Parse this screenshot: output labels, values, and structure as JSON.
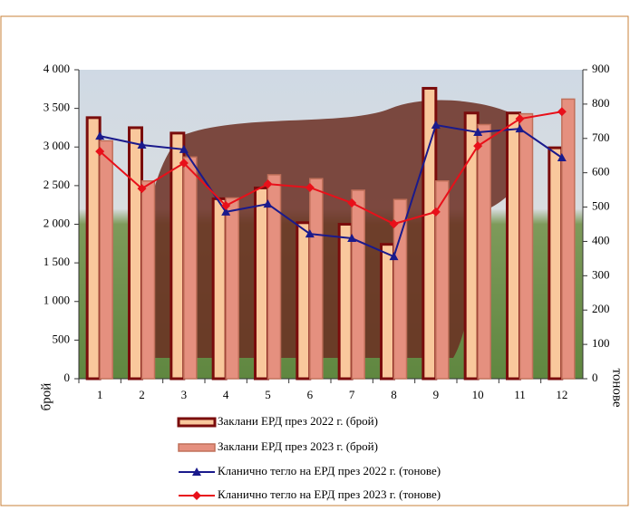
{
  "chart_data": {
    "type": "bar",
    "categories": [
      "1",
      "2",
      "3",
      "4",
      "5",
      "6",
      "7",
      "8",
      "9",
      "10",
      "11",
      "12"
    ],
    "ylim": [
      0,
      4000
    ],
    "yticks": [
      0,
      500,
      {
        "value": 1000,
        "label": "1 000"
      },
      {
        "value": 1500,
        "label": "1 500"
      },
      {
        "value": 2000,
        "label": "2 000"
      },
      {
        "value": 2500,
        "label": "2 500"
      },
      {
        "value": 3000,
        "label": "3 000"
      },
      {
        "value": 3500,
        "label": "3 500"
      },
      {
        "value": 4000,
        "label": "4 000"
      }
    ],
    "y2lim": [
      0,
      900
    ],
    "y2ticks": [
      0,
      100,
      200,
      300,
      400,
      500,
      600,
      700,
      800,
      900
    ],
    "ylabel": "брой",
    "y2label": "тонове",
    "series": [
      {
        "name": "Заклани ЕРД през 2022 г. (брой)",
        "type": "bar",
        "color": "#f9c89c",
        "edge": "#7a0c0c",
        "values": [
          3380,
          3250,
          3180,
          2330,
          2470,
          2020,
          2000,
          1740,
          3760,
          3440,
          3440,
          2990
        ]
      },
      {
        "name": "Заклани ЕРД през 2023 г. (брой)",
        "type": "bar",
        "color": "#e5907f",
        "edge": "#c0705a",
        "values": [
          3080,
          2560,
          2870,
          2340,
          2640,
          2590,
          2440,
          2320,
          2560,
          3290,
          3430,
          3620
        ]
      },
      {
        "name": "Кланично тегло на ЕРД през 2022 г. (тонове)",
        "type": "line",
        "axis": "y2",
        "color": "#1a1a8c",
        "marker": "triangle",
        "values": [
          707,
          681,
          668,
          486,
          509,
          422,
          409,
          356,
          739,
          718,
          728,
          644
        ]
      },
      {
        "name": "Кланично тегло на ЕРД през 2023 г. (тонове)",
        "type": "line",
        "axis": "y2",
        "color": "#e8101a",
        "marker": "diamond",
        "values": [
          662,
          554,
          628,
          504,
          567,
          557,
          512,
          451,
          486,
          678,
          757,
          778
        ]
      }
    ]
  }
}
